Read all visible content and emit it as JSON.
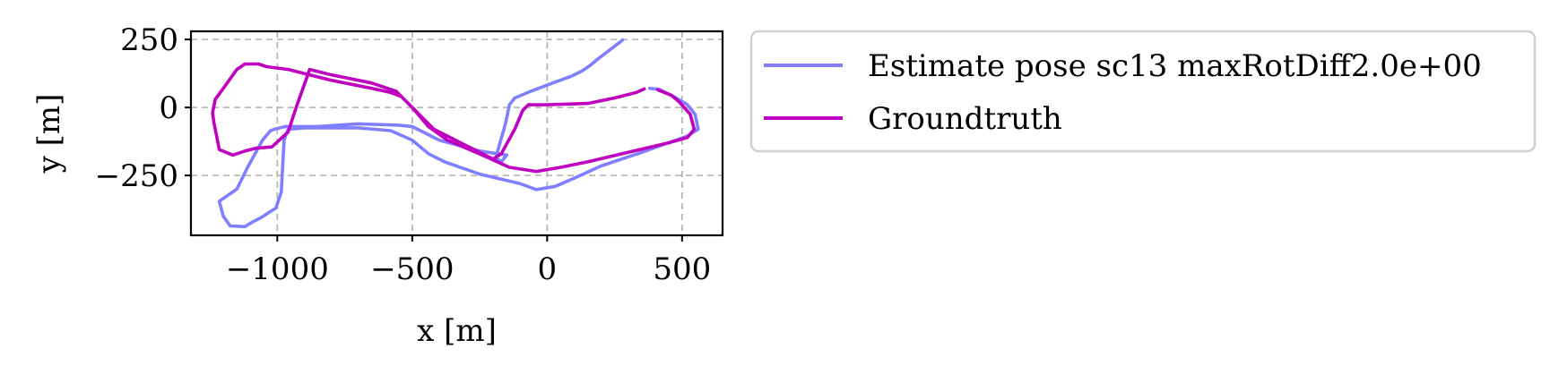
{
  "chart_data": {
    "type": "line",
    "xlabel": "x [m]",
    "ylabel": "y [m]",
    "xlim": [
      -1320,
      650
    ],
    "ylim": [
      -470,
      280
    ],
    "xticks": [
      -1000,
      -500,
      0,
      500
    ],
    "xtick_labels": [
      "−1000",
      "−500",
      "0",
      "500"
    ],
    "yticks": [
      250,
      0,
      -250
    ],
    "ytick_labels": [
      "250",
      "0",
      "−250"
    ],
    "grid": true,
    "legend_position": "outside-right-top",
    "series": [
      {
        "name": "Estimate pose sc13 maxRotDiff2.0e+00",
        "color": "#7f7fff",
        "points": [
          [
            280,
            248
          ],
          [
            250,
            225
          ],
          [
            190,
            180
          ],
          [
            160,
            155
          ],
          [
            130,
            135
          ],
          [
            90,
            115
          ],
          [
            20,
            90
          ],
          [
            -60,
            60
          ],
          [
            -120,
            35
          ],
          [
            -140,
            10
          ],
          [
            -150,
            -40
          ],
          [
            -160,
            -80
          ],
          [
            -175,
            -130
          ],
          [
            -190,
            -185
          ],
          [
            -170,
            -200
          ],
          [
            -150,
            -175
          ],
          [
            -250,
            -160
          ],
          [
            -400,
            -120
          ],
          [
            -500,
            -70
          ],
          [
            -550,
            -65
          ],
          [
            -700,
            -60
          ],
          [
            -850,
            -70
          ],
          [
            -970,
            -70
          ],
          [
            -1010,
            -80
          ],
          [
            -1025,
            -85
          ],
          [
            -1055,
            -120
          ],
          [
            -1110,
            -220
          ],
          [
            -1150,
            -300
          ],
          [
            -1215,
            -345
          ],
          [
            -1200,
            -400
          ],
          [
            -1175,
            -435
          ],
          [
            -1120,
            -438
          ],
          [
            -1090,
            -420
          ],
          [
            -1060,
            -405
          ],
          [
            -1030,
            -385
          ],
          [
            -1005,
            -370
          ],
          [
            -985,
            -310
          ],
          [
            -975,
            -120
          ],
          [
            -960,
            -80
          ],
          [
            -900,
            -75
          ],
          [
            -700,
            -75
          ],
          [
            -580,
            -85
          ],
          [
            -500,
            -120
          ],
          [
            -440,
            -170
          ],
          [
            -380,
            -200
          ],
          [
            -250,
            -245
          ],
          [
            -100,
            -280
          ],
          [
            -40,
            -302
          ],
          [
            30,
            -290
          ],
          [
            100,
            -260
          ],
          [
            200,
            -215
          ],
          [
            350,
            -165
          ],
          [
            450,
            -130
          ],
          [
            520,
            -105
          ],
          [
            560,
            -80
          ],
          [
            548,
            -25
          ],
          [
            520,
            10
          ],
          [
            470,
            40
          ],
          [
            415,
            67
          ],
          [
            380,
            70
          ]
        ]
      },
      {
        "name": "Groundtruth",
        "color": "#bf00bf",
        "points": [
          [
            360,
            68
          ],
          [
            330,
            55
          ],
          [
            250,
            35
          ],
          [
            150,
            15
          ],
          [
            0,
            10
          ],
          [
            -70,
            10
          ],
          [
            -90,
            -10
          ],
          [
            -120,
            -80
          ],
          [
            -170,
            -170
          ],
          [
            -200,
            -190
          ],
          [
            -300,
            -140
          ],
          [
            -420,
            -80
          ],
          [
            -480,
            -20
          ],
          [
            -540,
            40
          ],
          [
            -580,
            55
          ],
          [
            -650,
            70
          ],
          [
            -800,
            100
          ],
          [
            -960,
            140
          ],
          [
            -1040,
            150
          ],
          [
            -1070,
            160
          ],
          [
            -1120,
            160
          ],
          [
            -1150,
            140
          ],
          [
            -1200,
            70
          ],
          [
            -1230,
            30
          ],
          [
            -1240,
            -20
          ],
          [
            -1235,
            -55
          ],
          [
            -1215,
            -155
          ],
          [
            -1165,
            -175
          ],
          [
            -1120,
            -160
          ],
          [
            -1080,
            -150
          ],
          [
            -1020,
            -145
          ],
          [
            -960,
            -90
          ],
          [
            -930,
            0
          ],
          [
            -880,
            140
          ],
          [
            -800,
            120
          ],
          [
            -650,
            90
          ],
          [
            -560,
            60
          ],
          [
            -500,
            0
          ],
          [
            -440,
            -70
          ],
          [
            -370,
            -120
          ],
          [
            -240,
            -175
          ],
          [
            -140,
            -220
          ],
          [
            -40,
            -235
          ],
          [
            50,
            -220
          ],
          [
            150,
            -200
          ],
          [
            300,
            -165
          ],
          [
            450,
            -130
          ],
          [
            520,
            -110
          ],
          [
            545,
            -80
          ],
          [
            530,
            -25
          ],
          [
            490,
            20
          ],
          [
            460,
            45
          ],
          [
            410,
            65
          ]
        ]
      }
    ]
  }
}
